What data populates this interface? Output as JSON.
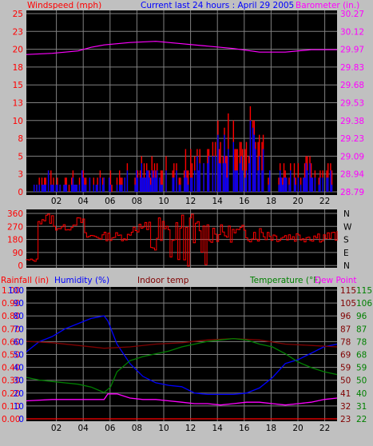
{
  "colors": {
    "background": "#c0c0c0",
    "plot": "#000000",
    "grid": "#808080",
    "wind": "#ff0000",
    "gust": "#0000ff",
    "barometer": "#ff00ff",
    "direction": "#ff0000",
    "rain": "#ff0000",
    "humidity": "#0000ff",
    "indoor": "#800000",
    "temperature": "#008000",
    "dewpoint": "#ff00ff"
  },
  "chart_data": [
    {
      "type": "line",
      "title": "Current last 24 hours : April 29 2005",
      "left_label": "Windspeed (mph)",
      "right_label": "Barometer (in.)",
      "x_ticks": [
        "02",
        "04",
        "06",
        "08",
        "10",
        "12",
        "14",
        "16",
        "18",
        "20",
        "22"
      ],
      "x_range_hours": [
        0,
        24
      ],
      "left_ticks": [
        "25",
        "23",
        "20",
        "18",
        "15",
        "13",
        "10",
        "8",
        "5",
        "3",
        "0"
      ],
      "left_range": [
        0,
        25
      ],
      "right_ticks": [
        "30.27",
        "30.12",
        "29.97",
        "29.83",
        "29.68",
        "29.53",
        "29.38",
        "29.23",
        "29.09",
        "28.94",
        "28.79"
      ],
      "right_range": [
        28.79,
        30.27
      ],
      "barometer": {
        "hours": [
          0,
          2,
          4,
          5,
          6,
          8,
          10,
          12,
          14,
          16,
          18,
          20,
          22,
          24
        ],
        "values": [
          29.93,
          29.94,
          29.96,
          29.99,
          30.01,
          30.03,
          30.04,
          30.02,
          30.0,
          29.98,
          29.95,
          29.95,
          29.97,
          29.97
        ]
      }
    },
    {
      "type": "line",
      "x_range_hours": [
        0,
        24
      ],
      "left_ticks": [
        "360",
        "270",
        "180",
        "90",
        "0"
      ],
      "left_range": [
        0,
        360
      ],
      "right_ticks": [
        "N",
        "W",
        "S",
        "E",
        "N"
      ]
    },
    {
      "type": "line",
      "labels": {
        "rain": "Rainfall (in)",
        "humidity": "Humidity (%)",
        "indoor": "Indoor temp",
        "temperature": "Temperature (°F)",
        "dewpoint": "Dew Point"
      },
      "x_ticks": [
        "02",
        "04",
        "06",
        "08",
        "10",
        "12",
        "14",
        "16",
        "18",
        "20",
        "22"
      ],
      "x_range_hours": [
        0,
        24
      ],
      "rain_ticks": [
        "0.00",
        "0.10",
        "0.20",
        "0.30",
        "0.40",
        "0.50",
        "0.60",
        "0.70",
        "0.80",
        "0.90",
        "1.00"
      ],
      "humidity_ticks": [
        "100",
        "90",
        "80",
        "70",
        "60",
        "50",
        "40",
        "30",
        "20",
        "10",
        "0"
      ],
      "humidity_range": [
        0,
        100
      ],
      "temp_ticks_a": [
        "115",
        "105",
        "96",
        "87",
        "78",
        "69",
        "59",
        "50",
        "41",
        "32",
        "23"
      ],
      "temp_ticks_b": [
        "115",
        "106",
        "96",
        "87",
        "78",
        "68",
        "59",
        "50",
        "40",
        "31",
        "22"
      ],
      "temp_range": [
        22,
        115
      ],
      "series": [
        {
          "key": "humidity",
          "hours": [
            0,
            0.5,
            1,
            2,
            3,
            4,
            5,
            5.5,
            6,
            6.3,
            7,
            8,
            9,
            10,
            11,
            12,
            13,
            14,
            15,
            16,
            17,
            18,
            19,
            20,
            21,
            22,
            23,
            24
          ],
          "values": [
            52,
            56,
            60,
            64,
            70,
            74,
            78,
            79,
            80,
            76,
            58,
            43,
            33,
            28,
            26,
            25,
            20,
            19,
            19,
            19,
            20,
            24,
            32,
            43,
            46,
            51,
            56,
            58
          ]
        },
        {
          "key": "indoor",
          "hours": [
            0,
            2,
            4,
            6,
            8,
            10,
            12,
            14,
            16,
            18,
            20,
            22,
            24
          ],
          "values": [
            78,
            77,
            75,
            73,
            74,
            76,
            77,
            79,
            80,
            79,
            76,
            75,
            74
          ]
        },
        {
          "key": "temperature",
          "hours": [
            0,
            1,
            2,
            3,
            4,
            5,
            6,
            6.5,
            7,
            8,
            9,
            10,
            11,
            12,
            13,
            14,
            15,
            16,
            17,
            18,
            19,
            20,
            21,
            22,
            23,
            24
          ],
          "values": [
            52,
            50,
            49,
            48,
            47,
            45,
            41,
            45,
            56,
            64,
            67,
            69,
            71,
            74,
            76,
            78,
            79,
            80,
            79,
            76,
            74,
            69,
            63,
            59,
            56,
            54
          ]
        },
        {
          "key": "dewpoint",
          "hours": [
            0,
            2,
            4,
            6,
            6.3,
            7,
            8,
            9,
            10,
            11,
            12,
            13,
            14,
            15,
            16,
            17,
            18,
            19,
            20,
            21,
            22,
            23,
            24
          ],
          "values": [
            35,
            36,
            36,
            36,
            40,
            40,
            37,
            36,
            36,
            35,
            34,
            33,
            33,
            32,
            33,
            34,
            34,
            33,
            32,
            33,
            34,
            36,
            37
          ]
        },
        {
          "key": "rain",
          "hours": [
            0,
            24
          ],
          "values": [
            0,
            0
          ]
        }
      ]
    }
  ]
}
